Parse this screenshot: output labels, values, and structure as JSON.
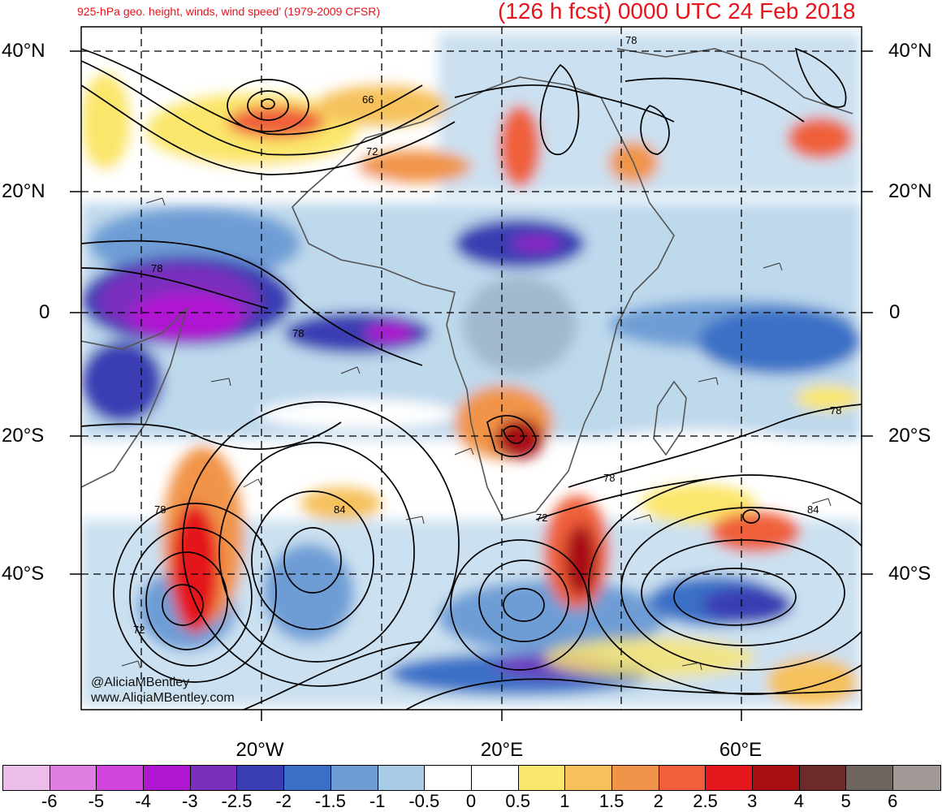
{
  "title": {
    "left": "925-hPa geo. height, winds, wind speed’ (1979-2009 CFSR)",
    "right": "(126 h fcst) 0000 UTC 24 Feb 2018"
  },
  "lat_labels": [
    "40°N",
    "20°N",
    "0",
    "20°S",
    "40°S"
  ],
  "lon_labels": [
    "20°W",
    "20°E",
    "60°E"
  ],
  "contour_labels": [
    "66",
    "72",
    "78",
    "78",
    "78",
    "78",
    "84",
    "78",
    "72",
    "72",
    "84"
  ],
  "colorbar": {
    "colors": [
      "#ebbde8",
      "#e07de3",
      "#d244de",
      "#b017d1",
      "#7a2fbd",
      "#3b3db3",
      "#3a6fc6",
      "#6e9dd5",
      "#a8cbe6",
      "#ffffff",
      "#ffffff",
      "#fbe66c",
      "#f6c15c",
      "#f19449",
      "#ef603a",
      "#e4181d",
      "#a70f12",
      "#6e2a2a",
      "#6e6560",
      "#a09995"
    ],
    "labels": [
      "-6",
      "-5",
      "-4",
      "-3",
      "-2.5",
      "-2",
      "-1.5",
      "-1",
      "-0.5",
      "0",
      "0.5",
      "1",
      "1.5",
      "2",
      "2.5",
      "3",
      "4",
      "5",
      "6"
    ]
  },
  "credits": {
    "handle": "@AliciaMBentley",
    "site": "www.AliciaMBentley.com"
  }
}
